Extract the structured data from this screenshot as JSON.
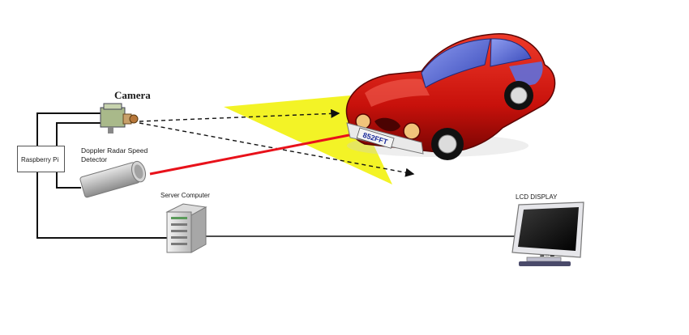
{
  "labels": {
    "camera": "Camera",
    "radar": "Doppler Radar Speed Detector",
    "server": "Server Computer",
    "lcd": "LCD DISPLAY",
    "pi": "Raspberry Pi",
    "plate": "852FFT"
  },
  "colors": {
    "car_body": "#c8110b",
    "car_dark": "#7a0503",
    "window": "#4a5fd6",
    "beam": "#f2f21a",
    "laser": "#e8111a",
    "wire": "#111111"
  }
}
